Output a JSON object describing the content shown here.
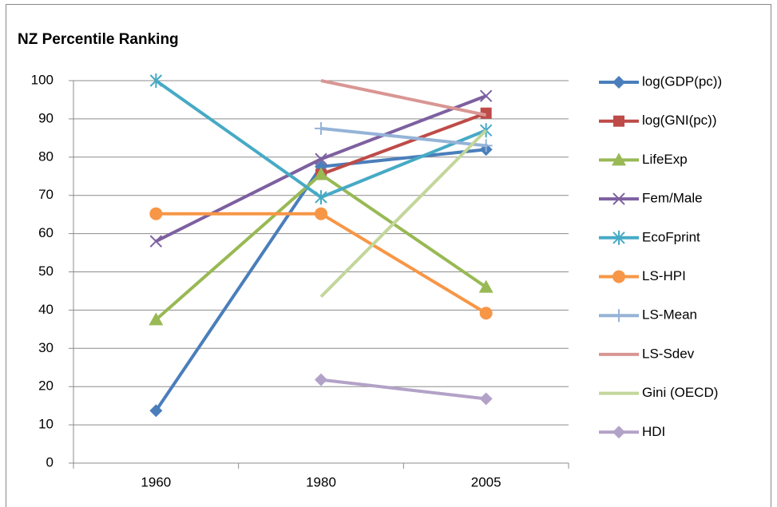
{
  "chart_data": {
    "type": "line",
    "title": "NZ Percentile Ranking",
    "categories": [
      "1960",
      "1980",
      "2005"
    ],
    "ylim": [
      0,
      100
    ],
    "yticks": [
      0,
      10,
      20,
      30,
      40,
      50,
      60,
      70,
      80,
      90,
      100
    ],
    "grid": true,
    "legend": "right",
    "series": [
      {
        "name": "log(GDP(pc))",
        "color": "#4a7ebb",
        "marker": "diamond",
        "values": [
          13.7,
          77.5,
          82
        ]
      },
      {
        "name": "log(GNI(pc))",
        "color": "#be4b48",
        "marker": "square",
        "values": [
          null,
          75.5,
          91.5
        ]
      },
      {
        "name": "LifeExp",
        "color": "#98b954",
        "marker": "triangle",
        "values": [
          37.5,
          75.5,
          46
        ]
      },
      {
        "name": "Fem/Male",
        "color": "#7d60a0",
        "marker": "x",
        "values": [
          58,
          79.5,
          96
        ]
      },
      {
        "name": "EcoFprint",
        "color": "#46aac5",
        "marker": "star",
        "values": [
          100,
          69.5,
          87
        ]
      },
      {
        "name": "LS-HPI",
        "color": "#f79646",
        "marker": "circle",
        "values": [
          65.2,
          65.2,
          39.2
        ]
      },
      {
        "name": "LS-Mean",
        "color": "#95b3d7",
        "marker": "plus",
        "values": [
          null,
          87.5,
          83
        ]
      },
      {
        "name": "LS-Sdev",
        "color": "#d99694",
        "values": [
          null,
          100,
          91
        ]
      },
      {
        "name": "Gini (OECD)",
        "color": "#c3d69b",
        "values": [
          null,
          43.5,
          87
        ]
      },
      {
        "name": "HDI",
        "color": "#b3a2c7",
        "marker": "diamond",
        "values": [
          null,
          21.8,
          16.8
        ]
      }
    ]
  }
}
